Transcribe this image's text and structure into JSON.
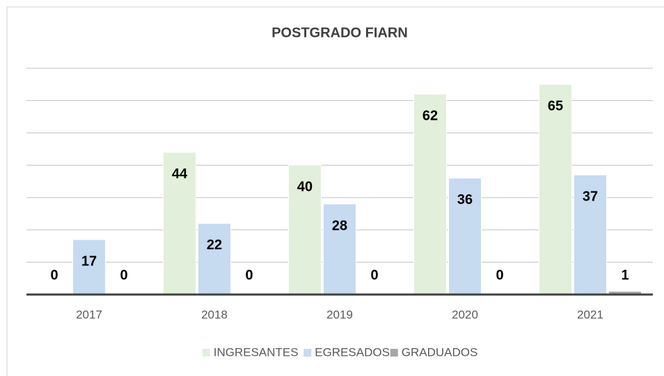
{
  "chart_data": {
    "type": "bar",
    "title": "POSTGRADO FIARN",
    "categories": [
      "2017",
      "2018",
      "2019",
      "2020",
      "2021"
    ],
    "series": [
      {
        "name": "INGRESANTES",
        "color": "#e2efda",
        "values": [
          0,
          44,
          40,
          62,
          65
        ]
      },
      {
        "name": "EGRESADOS",
        "color": "#c6daf0",
        "values": [
          17,
          22,
          28,
          36,
          37
        ]
      },
      {
        "name": "GRADUADOS",
        "color": "#a6a6a6",
        "values": [
          0,
          0,
          0,
          0,
          1
        ]
      }
    ],
    "ylim": [
      0,
      70
    ],
    "yticks": [
      0,
      10,
      20,
      30,
      40,
      50,
      60,
      70
    ],
    "grid": true,
    "legend": "bottom"
  }
}
